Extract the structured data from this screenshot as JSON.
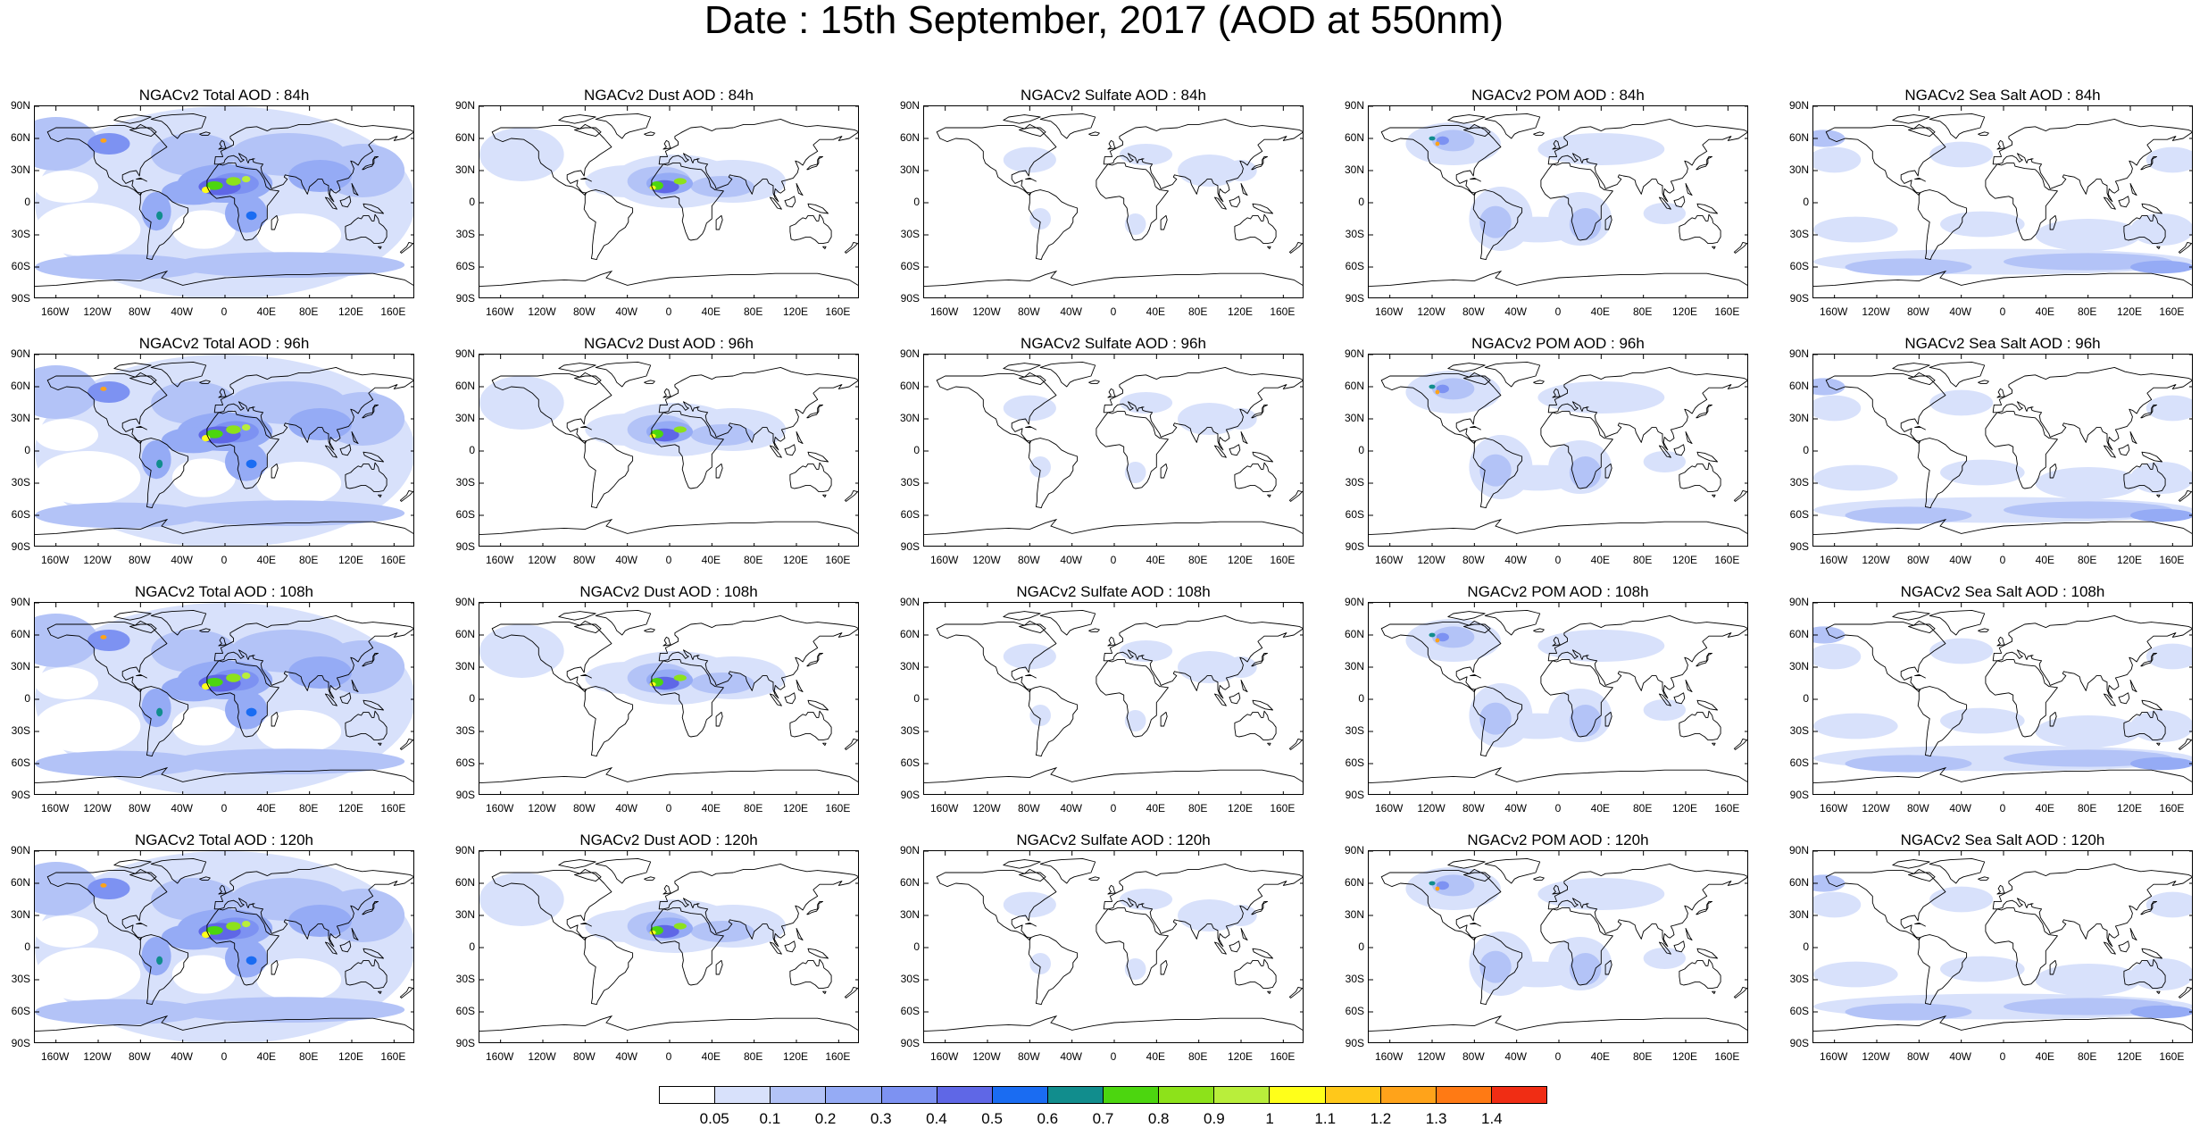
{
  "title": "Date : 15th September, 2017 (AOD at 550nm)",
  "row_titles": [
    [
      "NGACv2 Total AOD : 84h",
      "NGACv2 Dust AOD : 84h",
      "NGACv2 Sulfate AOD : 84h",
      "NGACv2 POM AOD : 84h",
      "NGACv2 Sea Salt AOD : 84h"
    ],
    [
      "NGACv2 Total AOD : 96h",
      "NGACv2 Dust AOD : 96h",
      "NGACv2 Sulfate AOD : 96h",
      "NGACv2 POM AOD : 96h",
      "NGACv2 Sea Salt AOD : 96h"
    ],
    [
      "NGACv2 Total AOD : 108h",
      "NGACv2 Dust AOD : 108h",
      "NGACv2 Sulfate AOD : 108h",
      "NGACv2 POM AOD : 108h",
      "NGACv2 Sea Salt AOD : 108h"
    ],
    [
      "NGACv2 Total AOD : 120h",
      "NGACv2 Dust AOD : 120h",
      "NGACv2 Sulfate AOD : 120h",
      "NGACv2 POM AOD : 120h",
      "NGACv2 Sea Salt  AOD : 120h"
    ]
  ],
  "panel_types": [
    "total",
    "dust",
    "sulfate",
    "pom",
    "seasalt"
  ],
  "lat_labels": [
    "90N",
    "60N",
    "30N",
    "0",
    "30S",
    "60S",
    "90S"
  ],
  "lat_values": [
    90,
    60,
    30,
    0,
    -30,
    -60,
    -90
  ],
  "lon_labels": [
    "160W",
    "120W",
    "80W",
    "40W",
    "0",
    "40E",
    "80E",
    "120E",
    "160E"
  ],
  "lon_values": [
    -160,
    -120,
    -80,
    -40,
    0,
    40,
    80,
    120,
    160
  ],
  "colorbar": {
    "levels": [
      "0.05",
      "0.1",
      "0.2",
      "0.3",
      "0.4",
      "0.5",
      "0.6",
      "0.7",
      "0.8",
      "0.9",
      "1",
      "1.1",
      "1.2",
      "1.3",
      "1.4"
    ],
    "colors": [
      "#ffffff",
      "#d8e1fb",
      "#b3c3f7",
      "#95abf5",
      "#7d92f2",
      "#5f67e6",
      "#1a6cf2",
      "#118d8d",
      "#4cd60f",
      "#8de21a",
      "#b9ee3b",
      "#ffff1a",
      "#ffc81a",
      "#ffa31a",
      "#ff7a14",
      "#f02d14"
    ]
  }
}
